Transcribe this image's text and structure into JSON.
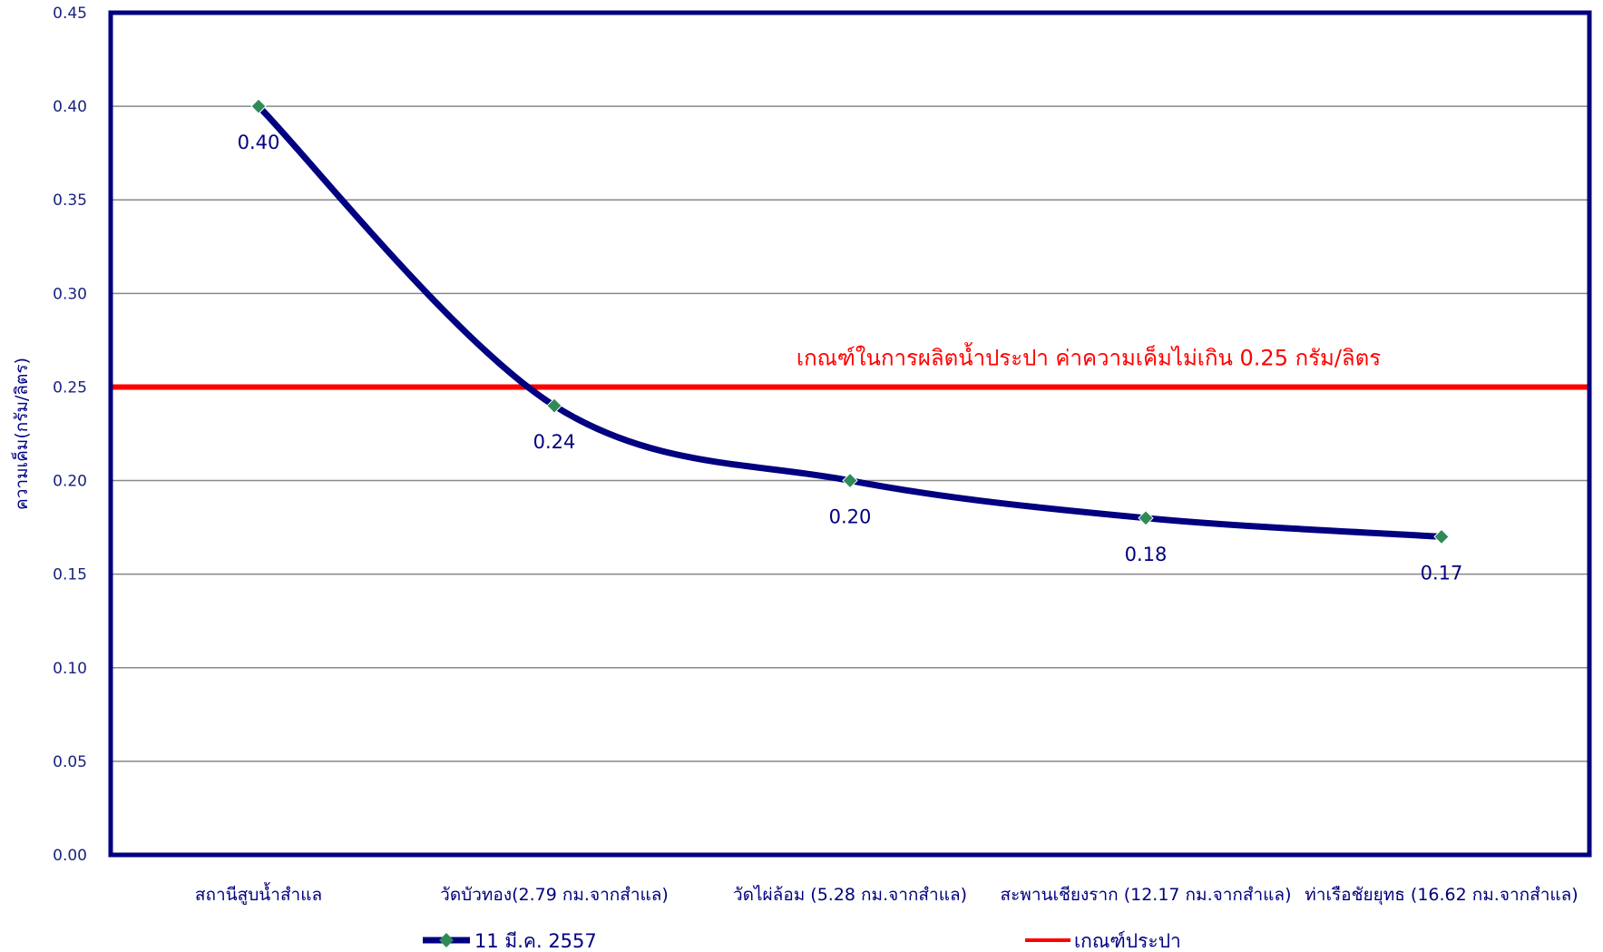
{
  "chart_data": {
    "type": "line",
    "ylabel": "ความเค็ม(กรัม/ลิตร)",
    "xlabel": "",
    "ylim": [
      0,
      0.45
    ],
    "yticks": [
      "0.00",
      "0.05",
      "0.10",
      "0.15",
      "0.20",
      "0.25",
      "0.30",
      "0.35",
      "0.40",
      "0.45"
    ],
    "categories": [
      "สถานีสูบน้ำสำแล",
      "วัดบัวทอง(2.79 กม.จากสำแล)",
      "วัดไผ่ล้อม (5.28 กม.จากสำแล)",
      "สะพานเชียงราก (12.17 กม.จากสำแล)",
      "ท่าเรือชัยยุทธ (16.62 กม.จากสำแล)"
    ],
    "series": [
      {
        "name": "11 มี.ค. 2557",
        "values": [
          0.4,
          0.24,
          0.2,
          0.18,
          0.17
        ],
        "labels": [
          "0.40",
          "0.24",
          "0.20",
          "0.18",
          "0.17"
        ],
        "color": "#000080",
        "marker_color": "#2e8b57",
        "smooth": true
      },
      {
        "name": "เกณฑ์ประปา",
        "threshold": 0.25,
        "color": "#ff0000"
      }
    ],
    "annotation": "เกณฑ์ในการผลิตน้ำประปา ค่าความเค็มไม่เกิน 0.25 กรัม/ลิตร",
    "grid": true,
    "legend_position": "bottom"
  }
}
